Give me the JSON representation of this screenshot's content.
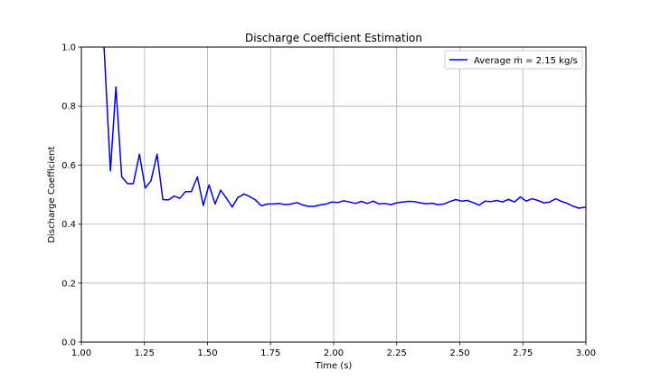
{
  "chart_data": {
    "type": "line",
    "title": "Discharge Coefficient Estimation",
    "xlabel": "Time (s)",
    "ylabel": "Discharge Coefficient",
    "xlim": [
      1.0,
      3.0
    ],
    "ylim": [
      0.0,
      1.0
    ],
    "xticks": [
      "1.00",
      "1.25",
      "1.50",
      "1.75",
      "2.00",
      "2.25",
      "2.50",
      "2.75",
      "3.00"
    ],
    "yticks": [
      "0.0",
      "0.2",
      "0.4",
      "0.6",
      "0.8",
      "1.0"
    ],
    "grid": true,
    "legend_position": "top-right",
    "series": [
      {
        "name": "Average ṁ = 2.15 kg/s",
        "color": "#0000ee",
        "x": [
          1.09,
          1.115,
          1.137,
          1.16,
          1.183,
          1.206,
          1.23,
          1.253,
          1.276,
          1.3,
          1.323,
          1.345,
          1.368,
          1.39,
          1.413,
          1.436,
          1.46,
          1.483,
          1.506,
          1.53,
          1.552,
          1.575,
          1.598,
          1.62,
          1.645,
          1.668,
          1.69,
          1.714,
          1.738,
          1.76,
          1.785,
          1.808,
          1.832,
          1.855,
          1.877,
          1.9,
          1.923,
          1.947,
          1.97,
          1.993,
          2.017,
          2.04,
          2.063,
          2.087,
          2.11,
          2.133,
          2.157,
          2.18,
          2.203,
          2.227,
          2.25,
          2.273,
          2.297,
          2.32,
          2.343,
          2.367,
          2.39,
          2.413,
          2.437,
          2.46,
          2.483,
          2.507,
          2.53,
          2.553,
          2.577,
          2.6,
          2.623,
          2.647,
          2.67,
          2.693,
          2.717,
          2.74,
          2.763,
          2.787,
          2.81,
          2.833,
          2.857,
          2.88,
          2.903,
          2.927,
          2.95,
          2.973,
          3.0
        ],
        "y": [
          1.0,
          0.58,
          0.865,
          0.56,
          0.537,
          0.537,
          0.637,
          0.522,
          0.547,
          0.637,
          0.483,
          0.482,
          0.495,
          0.487,
          0.51,
          0.51,
          0.56,
          0.463,
          0.533,
          0.468,
          0.515,
          0.488,
          0.458,
          0.49,
          0.502,
          0.493,
          0.482,
          0.462,
          0.468,
          0.468,
          0.47,
          0.466,
          0.468,
          0.473,
          0.465,
          0.46,
          0.46,
          0.465,
          0.468,
          0.475,
          0.473,
          0.479,
          0.475,
          0.47,
          0.477,
          0.47,
          0.478,
          0.468,
          0.47,
          0.466,
          0.472,
          0.475,
          0.477,
          0.476,
          0.472,
          0.469,
          0.471,
          0.466,
          0.468,
          0.476,
          0.483,
          0.478,
          0.48,
          0.473,
          0.464,
          0.478,
          0.476,
          0.48,
          0.475,
          0.484,
          0.475,
          0.492,
          0.478,
          0.486,
          0.48,
          0.472,
          0.475,
          0.486,
          0.477,
          0.47,
          0.46,
          0.454,
          0.458
        ]
      }
    ]
  }
}
